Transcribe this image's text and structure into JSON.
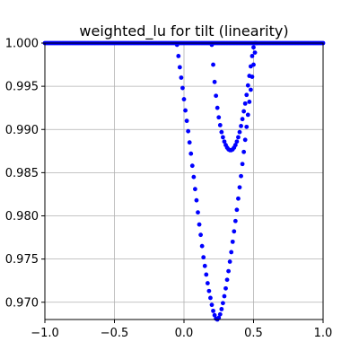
{
  "chart_data": {
    "type": "scatter",
    "title": "weighted_lu for tilt (linearity)",
    "xlabel": "",
    "ylabel": "",
    "xlim": [
      -1.0,
      1.0
    ],
    "ylim": [
      0.968,
      1.0
    ],
    "grid": true,
    "x_ticks": [
      -1.0,
      -0.5,
      0.0,
      0.5,
      1.0
    ],
    "x_tick_labels": [
      "−1.0",
      "−0.5",
      "0.0",
      "0.5",
      "1.0"
    ],
    "y_ticks": [
      0.97,
      0.975,
      0.98,
      0.985,
      0.99,
      0.995,
      1.0
    ],
    "y_tick_labels": [
      "0.970",
      "0.975",
      "0.980",
      "0.985",
      "0.990",
      "0.995",
      "1.000"
    ],
    "marker_color": "#0000ff",
    "series": [
      {
        "flat_line": {
          "x_start": -1.0,
          "x_end": 1.0,
          "y": 1.0
        },
        "points": [
          [
            -0.05,
            0.9998
          ],
          [
            -0.04,
            0.9985
          ],
          [
            -0.03,
            0.9972
          ],
          [
            -0.02,
            0.996
          ],
          [
            -0.01,
            0.9948
          ],
          [
            0.0,
            0.9935
          ],
          [
            0.01,
            0.9922
          ],
          [
            0.02,
            0.991
          ],
          [
            0.03,
            0.9898
          ],
          [
            0.04,
            0.9885
          ],
          [
            0.05,
            0.9872
          ],
          [
            0.06,
            0.9858
          ],
          [
            0.07,
            0.9845
          ],
          [
            0.08,
            0.9831
          ],
          [
            0.09,
            0.9818
          ],
          [
            0.1,
            0.9804
          ],
          [
            0.11,
            0.979
          ],
          [
            0.12,
            0.9778
          ],
          [
            0.13,
            0.9765
          ],
          [
            0.14,
            0.9752
          ],
          [
            0.15,
            0.9742
          ],
          [
            0.16,
            0.9732
          ],
          [
            0.17,
            0.9722
          ],
          [
            0.18,
            0.9713
          ],
          [
            0.19,
            0.9705
          ],
          [
            0.2,
            0.9697
          ],
          [
            0.21,
            0.969
          ],
          [
            0.22,
            0.9685
          ],
          [
            0.23,
            0.9681
          ],
          [
            0.24,
            0.968
          ],
          [
            0.25,
            0.9682
          ],
          [
            0.26,
            0.9686
          ],
          [
            0.27,
            0.9692
          ],
          [
            0.28,
            0.9699
          ],
          [
            0.29,
            0.9707
          ],
          [
            0.3,
            0.9716
          ],
          [
            0.31,
            0.9726
          ],
          [
            0.32,
            0.9736
          ],
          [
            0.33,
            0.9747
          ],
          [
            0.34,
            0.9758
          ],
          [
            0.35,
            0.977
          ],
          [
            0.36,
            0.9782
          ],
          [
            0.37,
            0.9794
          ],
          [
            0.38,
            0.9807
          ],
          [
            0.39,
            0.982
          ],
          [
            0.4,
            0.9833
          ],
          [
            0.41,
            0.9846
          ],
          [
            0.42,
            0.986
          ],
          [
            0.43,
            0.9874
          ],
          [
            0.44,
            0.9888
          ],
          [
            0.45,
            0.9903
          ],
          [
            0.46,
            0.9917
          ],
          [
            0.47,
            0.9932
          ],
          [
            0.48,
            0.9946
          ],
          [
            0.49,
            0.9961
          ],
          [
            0.5,
            0.9975
          ],
          [
            0.51,
            0.9989
          ],
          [
            0.52,
            1.0
          ],
          [
            0.2,
            0.9998
          ],
          [
            0.21,
            0.9975
          ],
          [
            0.22,
            0.9955
          ],
          [
            0.23,
            0.9939
          ],
          [
            0.24,
            0.9925
          ],
          [
            0.25,
            0.9914
          ],
          [
            0.26,
            0.9905
          ],
          [
            0.27,
            0.9897
          ],
          [
            0.28,
            0.9891
          ],
          [
            0.29,
            0.9886
          ],
          [
            0.3,
            0.9882
          ],
          [
            0.31,
            0.9879
          ],
          [
            0.32,
            0.9877
          ],
          [
            0.33,
            0.9876
          ],
          [
            0.34,
            0.9876
          ],
          [
            0.35,
            0.9877
          ],
          [
            0.36,
            0.9879
          ],
          [
            0.37,
            0.9882
          ],
          [
            0.38,
            0.9886
          ],
          [
            0.39,
            0.9891
          ],
          [
            0.4,
            0.9897
          ],
          [
            0.41,
            0.9904
          ],
          [
            0.42,
            0.9912
          ],
          [
            0.43,
            0.9921
          ],
          [
            0.44,
            0.993
          ],
          [
            0.45,
            0.994
          ],
          [
            0.46,
            0.9951
          ],
          [
            0.47,
            0.9962
          ],
          [
            0.48,
            0.9973
          ],
          [
            0.49,
            0.9985
          ],
          [
            0.5,
            0.9995
          ],
          [
            0.51,
            1.0
          ]
        ]
      }
    ]
  }
}
